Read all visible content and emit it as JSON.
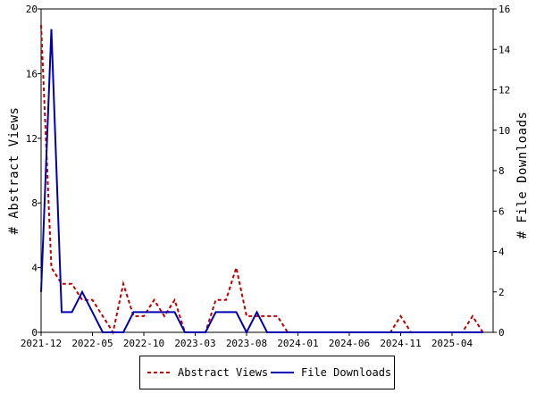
{
  "chart_data": {
    "type": "line",
    "x_ticks": [
      "2021-12",
      "2022-05",
      "2022-10",
      "2023-03",
      "2023-08",
      "2024-01",
      "2024-06",
      "2024-11",
      "2025-04"
    ],
    "y_left": {
      "label": "# Abstract Views",
      "ticks": [
        0,
        4,
        8,
        12,
        16,
        20
      ],
      "ylim": [
        0,
        20
      ]
    },
    "y_right": {
      "label": "# File Downloads",
      "ticks": [
        0,
        2,
        4,
        6,
        8,
        10,
        12,
        14,
        16
      ],
      "ylim": [
        0,
        16
      ]
    },
    "xlim": [
      0,
      44
    ],
    "series": [
      {
        "name": "Abstract Views",
        "axis": "left",
        "color": "#c00000",
        "style": "dashed",
        "x": [
          0,
          1,
          2,
          3,
          4,
          5,
          6,
          7,
          8,
          9,
          10,
          11,
          12,
          13,
          14,
          15,
          16,
          17,
          18,
          19,
          20,
          21,
          22,
          23,
          24,
          25,
          26,
          27,
          28,
          29,
          30,
          31,
          32,
          33,
          34,
          35,
          36,
          37,
          38,
          39,
          40,
          41,
          42,
          43
        ],
        "values": [
          19,
          4,
          3,
          3,
          2,
          2,
          1,
          0,
          3,
          1,
          1,
          2,
          1,
          2,
          0,
          0,
          0,
          2,
          2,
          4,
          1,
          1,
          1,
          1,
          0,
          0,
          0,
          0,
          0,
          0,
          0,
          0,
          0,
          0,
          0,
          1,
          0,
          0,
          0,
          0,
          0,
          0,
          1,
          0
        ]
      },
      {
        "name": "File Downloads",
        "axis": "right",
        "color": "#0000b0",
        "style": "solid",
        "x": [
          0,
          1,
          2,
          3,
          4,
          5,
          6,
          7,
          8,
          9,
          10,
          11,
          12,
          13,
          14,
          15,
          16,
          17,
          18,
          19,
          20,
          21,
          22,
          23,
          24,
          25,
          26,
          27,
          28,
          29,
          30,
          31,
          32,
          33,
          34,
          35,
          36,
          37,
          38,
          39,
          40,
          41,
          42,
          43
        ],
        "values": [
          2,
          15,
          1,
          1,
          2,
          1,
          0,
          0,
          0,
          1,
          1,
          1,
          1,
          1,
          0,
          0,
          0,
          1,
          1,
          1,
          0,
          1,
          0,
          0,
          0,
          0,
          0,
          0,
          0,
          0,
          0,
          0,
          0,
          0,
          0,
          0,
          0,
          0,
          0,
          0,
          0,
          0,
          0,
          0
        ]
      }
    ]
  }
}
